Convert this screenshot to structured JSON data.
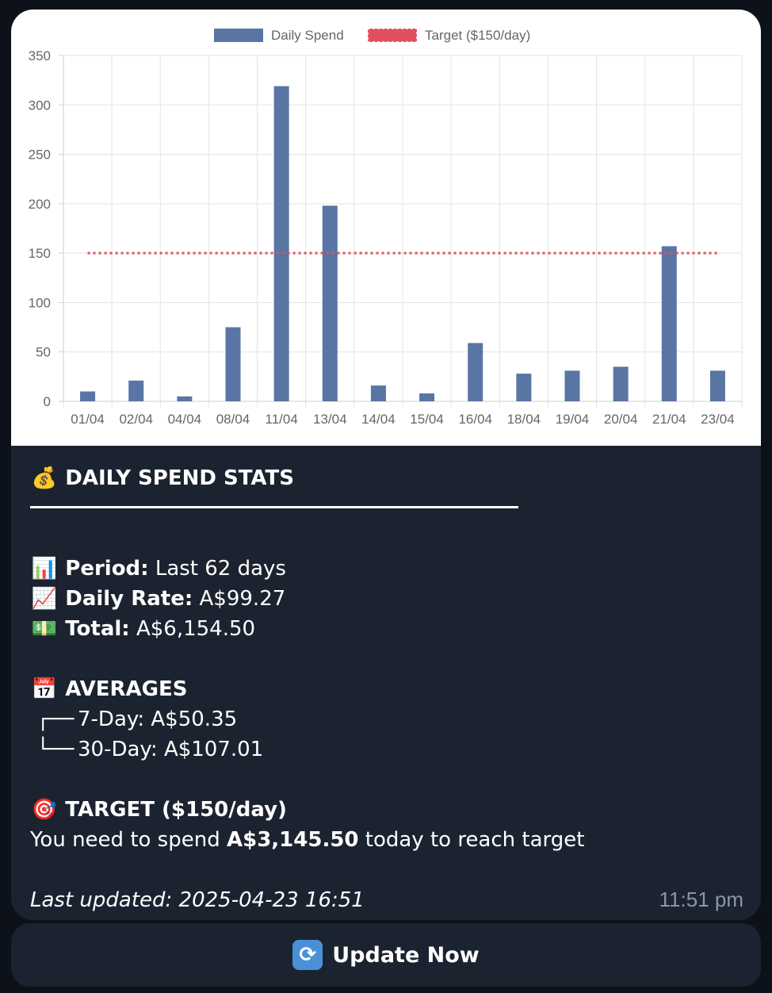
{
  "chart_data": {
    "type": "bar",
    "categories": [
      "01/04",
      "02/04",
      "04/04",
      "08/04",
      "11/04",
      "13/04",
      "14/04",
      "15/04",
      "16/04",
      "18/04",
      "19/04",
      "20/04",
      "21/04",
      "23/04"
    ],
    "series": [
      {
        "name": "Daily Spend",
        "values": [
          10,
          21,
          5,
          75,
          319,
          198,
          16,
          8,
          59,
          28,
          31,
          35,
          157,
          31
        ],
        "color": "#5975a4"
      },
      {
        "name": "Target ($150/day)",
        "values": [
          150,
          150,
          150,
          150,
          150,
          150,
          150,
          150,
          150,
          150,
          150,
          150,
          150,
          150
        ],
        "color": "#e05060",
        "style": "dotted line"
      }
    ],
    "ylim": [
      0,
      350
    ],
    "yticks": [
      0,
      50,
      100,
      150,
      200,
      250,
      300,
      350
    ],
    "grid": true,
    "legend": "top-center"
  },
  "stats": {
    "title_icon": "money-bag-icon",
    "title": "DAILY SPEND STATS",
    "period_label": "Period:",
    "period_value": " Last 62 days",
    "rate_label": "Daily Rate:",
    "rate_value": " A$99.27",
    "total_label": "Total:",
    "total_value": " A$6,154.50",
    "averages_label": "AVERAGES",
    "avg_7": "7-Day: A$50.35",
    "avg_30": "30-Day: A$107.01",
    "target_label": "TARGET ($150/day)",
    "target_prefix": "You need to spend ",
    "target_amount": "A$3,145.50",
    "target_suffix": " today to reach target",
    "last_updated": "Last updated: 2025-04-23 16:51"
  },
  "message_time": "11:51 pm",
  "button": {
    "label": "Update Now",
    "icon": "refresh-icon"
  },
  "colors": {
    "bar": "#5975a4",
    "target": "#e05060",
    "bubble": "#1c2330",
    "background": "#0d121a"
  }
}
